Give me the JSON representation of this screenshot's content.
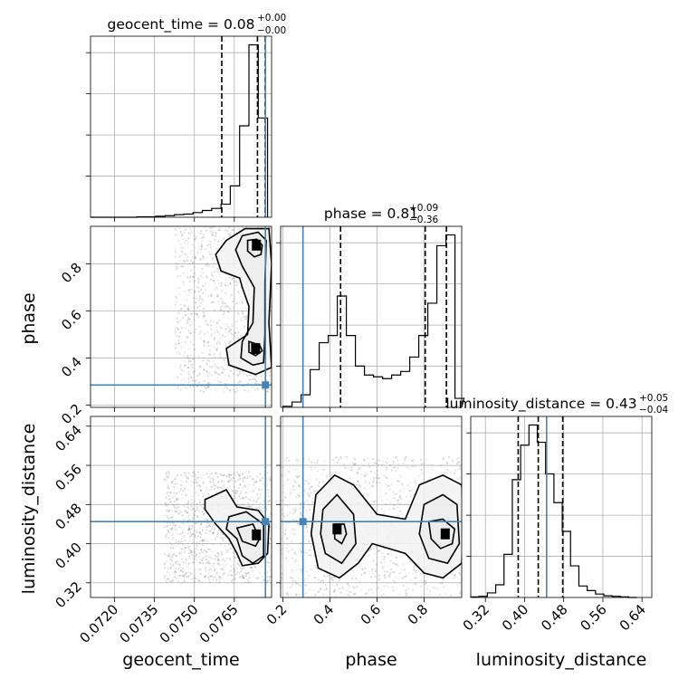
{
  "chart_data": {
    "type": "corner",
    "parameters": [
      "geocent_time",
      "phase",
      "luminosity_distance"
    ],
    "axis_labels": {
      "geocent_time": "geocent_time",
      "phase": "phase",
      "luminosity_distance": "luminosity_distance"
    },
    "ranges": {
      "geocent_time": [
        0.0711,
        0.0779
      ],
      "phase": [
        0.19,
        0.96
      ],
      "luminosity_distance": [
        0.29,
        0.66
      ]
    },
    "ticks": {
      "geocent_time": [
        "0.0720",
        "0.0735",
        "0.0750",
        "0.0765"
      ],
      "phase": [
        "0.2",
        "0.4",
        "0.6",
        "0.8"
      ],
      "luminosity_distance": [
        "0.32",
        "0.40",
        "0.48",
        "0.56",
        "0.64"
      ]
    },
    "titles": {
      "geocent_time": {
        "median": "0.08",
        "plus": "+0.00",
        "minus": "−0.00",
        "prefix": "geocent_time = "
      },
      "phase": {
        "median": "0.81",
        "plus": "+0.09",
        "minus": "−0.36",
        "prefix": "phase = "
      },
      "luminosity_distance": {
        "median": "0.43",
        "plus": "+0.05",
        "minus": "−0.04",
        "prefix": "luminosity_distance = "
      }
    },
    "truths": {
      "geocent_time": 0.07767,
      "phase": 0.285,
      "luminosity_distance": 0.445
    },
    "quantiles": {
      "geocent_time": [
        0.07603,
        0.07737,
        0.07766
      ],
      "phase": [
        0.445,
        0.805,
        0.895
      ],
      "luminosity_distance": [
        0.387,
        0.428,
        0.478
      ]
    },
    "histograms": {
      "geocent_time": {
        "edges": [
          0.0711,
          0.07145,
          0.0718,
          0.07215,
          0.0725,
          0.07285,
          0.0732,
          0.07355,
          0.0739,
          0.07425,
          0.0746,
          0.07495,
          0.0753,
          0.07565,
          0.076,
          0.07635,
          0.0767,
          0.07705,
          0.0774,
          0.07775
        ],
        "counts": [
          0,
          0,
          0,
          0,
          0,
          1,
          1,
          2,
          3,
          5,
          6,
          9,
          13,
          17,
          25,
          60,
          175,
          330,
          190
        ]
      },
      "phase": {
        "edges": [
          0.2,
          0.2385,
          0.277,
          0.3155,
          0.354,
          0.3925,
          0.431,
          0.4695,
          0.508,
          0.5465,
          0.585,
          0.6235,
          0.662,
          0.7005,
          0.739,
          0.7775,
          0.816,
          0.8545,
          0.893,
          0.9315,
          0.97
        ],
        "counts": [
          3,
          15,
          35,
          105,
          180,
          200,
          310,
          200,
          115,
          90,
          85,
          80,
          90,
          100,
          140,
          200,
          290,
          450,
          480,
          25
        ]
      },
      "luminosity_distance": {
        "edges": [
          0.29,
          0.307,
          0.324,
          0.341,
          0.358,
          0.375,
          0.392,
          0.409,
          0.426,
          0.443,
          0.46,
          0.477,
          0.494,
          0.511,
          0.528,
          0.545,
          0.562,
          0.579,
          0.596,
          0.613,
          0.63
        ],
        "counts": [
          1,
          2,
          8,
          22,
          75,
          205,
          265,
          300,
          270,
          215,
          165,
          115,
          55,
          20,
          12,
          6,
          3,
          2,
          1,
          0
        ]
      }
    },
    "contours_2d": {
      "phase_vs_geocent_time": [
        {
          "level": 0.5,
          "points": [
            [
              0.077,
              0.9
            ],
            [
              0.07735,
              0.905
            ],
            [
              0.07755,
              0.88
            ],
            [
              0.0775,
              0.84
            ],
            [
              0.07725,
              0.83
            ],
            [
              0.077,
              0.855
            ]
          ]
        },
        {
          "level": 0.5,
          "points": [
            [
              0.07705,
              0.47
            ],
            [
              0.07745,
              0.455
            ],
            [
              0.07755,
              0.43
            ],
            [
              0.0773,
              0.41
            ],
            [
              0.07705,
              0.425
            ]
          ]
        },
        {
          "level": 0.9,
          "points": [
            [
              0.0768,
              0.92
            ],
            [
              0.0774,
              0.935
            ],
            [
              0.0777,
              0.9
            ],
            [
              0.07765,
              0.72
            ],
            [
              0.07765,
              0.5
            ],
            [
              0.0776,
              0.38
            ],
            [
              0.0772,
              0.37
            ],
            [
              0.07675,
              0.4
            ],
            [
              0.0768,
              0.47
            ],
            [
              0.0772,
              0.55
            ],
            [
              0.07725,
              0.7
            ],
            [
              0.0768,
              0.79
            ],
            [
              0.07655,
              0.86
            ]
          ]
        },
        {
          "level": 0.99,
          "points": [
            [
              0.0762,
              0.9
            ],
            [
              0.0769,
              0.95
            ],
            [
              0.0778,
              0.95
            ],
            [
              0.0779,
              0.8
            ],
            [
              0.0778,
              0.55
            ],
            [
              0.0779,
              0.36
            ],
            [
              0.0773,
              0.33
            ],
            [
              0.0763,
              0.37
            ],
            [
              0.0762,
              0.44
            ],
            [
              0.077,
              0.5
            ],
            [
              0.07705,
              0.62
            ],
            [
              0.0768,
              0.7
            ],
            [
              0.0767,
              0.74
            ],
            [
              0.076,
              0.77
            ],
            [
              0.0758,
              0.84
            ]
          ]
        }
      ],
      "luminosity_distance_vs_geocent_time": [
        {
          "level": 0.5,
          "points": [
            [
              0.0766,
              0.432
            ],
            [
              0.0772,
              0.44
            ],
            [
              0.07745,
              0.41
            ],
            [
              0.0773,
              0.395
            ],
            [
              0.0768,
              0.405
            ]
          ]
        },
        {
          "level": 0.9,
          "points": [
            [
              0.0763,
              0.455
            ],
            [
              0.07695,
              0.465
            ],
            [
              0.0776,
              0.44
            ],
            [
              0.0776,
              0.375
            ],
            [
              0.0772,
              0.36
            ],
            [
              0.0768,
              0.375
            ],
            [
              0.0766,
              0.41
            ],
            [
              0.0762,
              0.43
            ]
          ]
        },
        {
          "level": 0.99,
          "points": [
            [
              0.0754,
              0.49
            ],
            [
              0.0762,
              0.51
            ],
            [
              0.0766,
              0.475
            ],
            [
              0.0774,
              0.468
            ],
            [
              0.0778,
              0.44
            ],
            [
              0.07775,
              0.38
            ],
            [
              0.0774,
              0.36
            ],
            [
              0.0768,
              0.355
            ],
            [
              0.0766,
              0.38
            ],
            [
              0.0763,
              0.41
            ],
            [
              0.0758,
              0.44
            ],
            [
              0.0754,
              0.47
            ]
          ]
        }
      ],
      "luminosity_distance_vs_phase": [
        {
          "level": 0.5,
          "points": [
            [
              0.82,
              0.445
            ],
            [
              0.88,
              0.45
            ],
            [
              0.93,
              0.43
            ],
            [
              0.92,
              0.4
            ],
            [
              0.87,
              0.39
            ],
            [
              0.83,
              0.41
            ]
          ]
        },
        {
          "level": 0.5,
          "points": [
            [
              0.42,
              0.44
            ],
            [
              0.46,
              0.44
            ],
            [
              0.47,
              0.42
            ],
            [
              0.45,
              0.4
            ],
            [
              0.42,
              0.41
            ]
          ]
        },
        {
          "level": 0.9,
          "points": [
            [
              0.8,
              0.48
            ],
            [
              0.88,
              0.5
            ],
            [
              0.94,
              0.48
            ],
            [
              0.95,
              0.4
            ],
            [
              0.9,
              0.36
            ],
            [
              0.82,
              0.37
            ],
            [
              0.78,
              0.42
            ]
          ]
        },
        {
          "level": 0.9,
          "points": [
            [
              0.37,
              0.47
            ],
            [
              0.43,
              0.5
            ],
            [
              0.5,
              0.46
            ],
            [
              0.51,
              0.4
            ],
            [
              0.45,
              0.36
            ],
            [
              0.38,
              0.38
            ],
            [
              0.36,
              0.42
            ]
          ]
        },
        {
          "level": 0.99,
          "points": [
            [
              0.78,
              0.52
            ],
            [
              0.88,
              0.54
            ],
            [
              0.96,
              0.52
            ],
            [
              0.97,
              0.44
            ],
            [
              0.96,
              0.36
            ],
            [
              0.88,
              0.33
            ],
            [
              0.8,
              0.34
            ],
            [
              0.72,
              0.38
            ],
            [
              0.58,
              0.4
            ],
            [
              0.52,
              0.36
            ],
            [
              0.44,
              0.33
            ],
            [
              0.35,
              0.35
            ],
            [
              0.32,
              0.42
            ],
            [
              0.34,
              0.5
            ],
            [
              0.42,
              0.54
            ],
            [
              0.5,
              0.52
            ],
            [
              0.6,
              0.46
            ],
            [
              0.72,
              0.45
            ]
          ]
        }
      ]
    },
    "modes_2d": {
      "phase_vs_geocent_time": [
        [
          0.07733,
          0.88
        ],
        [
          0.0773,
          0.44
        ]
      ],
      "luminosity_distance_vs_geocent_time": [
        [
          0.07733,
          0.418
        ]
      ],
      "luminosity_distance_vs_phase": [
        [
          0.89,
          0.42
        ],
        [
          0.43,
          0.43
        ]
      ]
    },
    "grid": true,
    "colors": {
      "truth": "#4682b4",
      "contour": "#000000",
      "points": "#808080"
    }
  }
}
